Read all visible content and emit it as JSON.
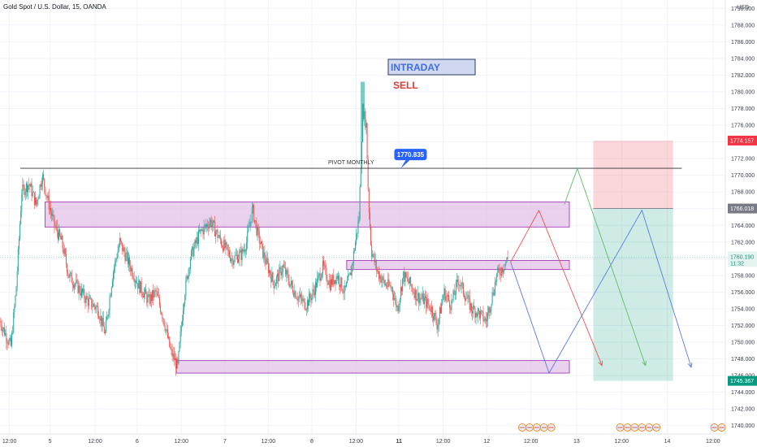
{
  "chart_data": {
    "type": "candlestick",
    "title": "Gold Spot / U.S. Dollar, 15, OANDA",
    "currency": "USD",
    "ylim": [
      1739,
      1791
    ],
    "y_ticks": [
      1740,
      1742,
      1744,
      1746,
      1748,
      1750,
      1752,
      1754,
      1756,
      1758,
      1760,
      1762,
      1764,
      1766,
      1768,
      1770,
      1772,
      1774,
      1776,
      1778,
      1780,
      1782,
      1784,
      1786,
      1788,
      1790
    ],
    "y_tick_labels": [
      "1740.000",
      "1742.000",
      "1744.000",
      "1746.000",
      "1748.000",
      "1750.000",
      "1752.000",
      "1754.000",
      "1756.000",
      "1758.000",
      "1760.000",
      "1762.000",
      "1764.000",
      "1766.000",
      "1768.000",
      "1770.000",
      "1772.000",
      "1774.000",
      "1776.000",
      "1778.000",
      "1780.000",
      "1782.000",
      "1784.000",
      "1786.000",
      "1788.000",
      "1790.000"
    ],
    "x_range": [
      0,
      1
    ],
    "x_ticks": [
      {
        "label": "12:00",
        "x": 0.013,
        "bold": false
      },
      {
        "label": "5",
        "x": 0.069,
        "bold": false
      },
      {
        "label": "12:00",
        "x": 0.131,
        "bold": false
      },
      {
        "label": "6",
        "x": 0.189,
        "bold": false
      },
      {
        "label": "12:00",
        "x": 0.25,
        "bold": false
      },
      {
        "label": "7",
        "x": 0.31,
        "bold": false
      },
      {
        "label": "12:00",
        "x": 0.37,
        "bold": false
      },
      {
        "label": "8",
        "x": 0.43,
        "bold": false
      },
      {
        "label": "12:00",
        "x": 0.491,
        "bold": false
      },
      {
        "label": "11",
        "x": 0.55,
        "bold": true
      },
      {
        "label": "12:00",
        "x": 0.611,
        "bold": false
      },
      {
        "label": "12",
        "x": 0.671,
        "bold": false
      },
      {
        "label": "12:00",
        "x": 0.732,
        "bold": false
      },
      {
        "label": "13",
        "x": 0.795,
        "bold": false
      },
      {
        "label": "12:00",
        "x": 0.857,
        "bold": false
      },
      {
        "label": "14",
        "x": 0.92,
        "bold": false
      },
      {
        "label": "12:00",
        "x": 0.983,
        "bold": false
      }
    ],
    "price_waypoints": [
      [
        0.0,
        1752.5
      ],
      [
        0.015,
        1749.5
      ],
      [
        0.022,
        1756.0
      ],
      [
        0.03,
        1768.0
      ],
      [
        0.04,
        1769.0
      ],
      [
        0.05,
        1766.5
      ],
      [
        0.058,
        1770.0
      ],
      [
        0.066,
        1767.0
      ],
      [
        0.075,
        1764.0
      ],
      [
        0.085,
        1762.0
      ],
      [
        0.095,
        1758.0
      ],
      [
        0.108,
        1756.5
      ],
      [
        0.12,
        1755.0
      ],
      [
        0.135,
        1754.0
      ],
      [
        0.145,
        1751.0
      ],
      [
        0.155,
        1758.0
      ],
      [
        0.165,
        1762.0
      ],
      [
        0.175,
        1760.0
      ],
      [
        0.19,
        1757.0
      ],
      [
        0.205,
        1755.0
      ],
      [
        0.215,
        1756.0
      ],
      [
        0.225,
        1753.0
      ],
      [
        0.235,
        1749.0
      ],
      [
        0.245,
        1747.0
      ],
      [
        0.253,
        1755.0
      ],
      [
        0.262,
        1760.0
      ],
      [
        0.275,
        1763.0
      ],
      [
        0.29,
        1764.5
      ],
      [
        0.305,
        1762.0
      ],
      [
        0.32,
        1760.0
      ],
      [
        0.333,
        1760.5
      ],
      [
        0.34,
        1762.0
      ],
      [
        0.348,
        1766.0
      ],
      [
        0.355,
        1763.0
      ],
      [
        0.365,
        1760.0
      ],
      [
        0.378,
        1757.0
      ],
      [
        0.39,
        1759.0
      ],
      [
        0.4,
        1757.0
      ],
      [
        0.41,
        1755.5
      ],
      [
        0.422,
        1754.5
      ],
      [
        0.432,
        1756.0
      ],
      [
        0.445,
        1759.0
      ],
      [
        0.455,
        1757.0
      ],
      [
        0.465,
        1758.0
      ],
      [
        0.475,
        1756.0
      ],
      [
        0.483,
        1758.0
      ],
      [
        0.49,
        1762.0
      ],
      [
        0.495,
        1765.0
      ],
      [
        0.5,
        1778.0
      ],
      [
        0.505,
        1776.0
      ],
      [
        0.508,
        1767.0
      ],
      [
        0.512,
        1761.0
      ],
      [
        0.52,
        1758.5
      ],
      [
        0.53,
        1757.0
      ],
      [
        0.54,
        1756.5
      ],
      [
        0.548,
        1754.0
      ],
      [
        0.556,
        1758.0
      ],
      [
        0.565,
        1757.0
      ],
      [
        0.575,
        1755.5
      ],
      [
        0.585,
        1755.0
      ],
      [
        0.595,
        1754.0
      ],
      [
        0.603,
        1752.0
      ],
      [
        0.612,
        1756.0
      ],
      [
        0.622,
        1754.5
      ],
      [
        0.632,
        1757.5
      ],
      [
        0.642,
        1755.5
      ],
      [
        0.65,
        1754.0
      ],
      [
        0.66,
        1753.5
      ],
      [
        0.67,
        1752.5
      ],
      [
        0.677,
        1755.0
      ],
      [
        0.685,
        1758.0
      ],
      [
        0.693,
        1759.0
      ],
      [
        0.7,
        1760.0
      ]
    ],
    "horizontal_line": {
      "label": "PIVOT MONTHLY",
      "value": 1770.835
    },
    "callout": {
      "label": "1770.835",
      "x": 0.566,
      "value": 1770.835
    },
    "zones": [
      {
        "name": "upper-zone",
        "x0": 0.062,
        "x1": 0.785,
        "y0": 1763.8,
        "y1": 1766.8
      },
      {
        "name": "middle-zone",
        "x0": 0.478,
        "x1": 0.785,
        "y0": 1758.7,
        "y1": 1759.8
      },
      {
        "name": "lower-zone",
        "x0": 0.243,
        "x1": 0.785,
        "y0": 1746.3,
        "y1": 1747.8
      }
    ],
    "projections": [
      {
        "name": "red-projection",
        "color": "#ef5350",
        "points": [
          [
            0.704,
            1759.6
          ],
          [
            0.743,
            1765.8
          ],
          [
            0.83,
            1747.2
          ]
        ]
      },
      {
        "name": "blue-projection",
        "color": "#5b7be0",
        "points": [
          [
            0.704,
            1759.6
          ],
          [
            0.757,
            1746.3
          ],
          [
            0.885,
            1765.8
          ],
          [
            0.953,
            1747.0
          ]
        ]
      },
      {
        "name": "green-projection",
        "color": "#66bb6a",
        "points": [
          [
            0.778,
            1766.5
          ],
          [
            0.796,
            1770.8
          ],
          [
            0.89,
            1747.2
          ]
        ]
      }
    ],
    "risk_reward": {
      "x0": 0.818,
      "x1": 0.928,
      "entry": 1766.018,
      "stop": 1774.157,
      "target": 1745.367
    },
    "current_price": {
      "value": 1760.19,
      "timer": "11:32"
    },
    "price_tags": [
      {
        "name": "stop-tag",
        "label": "1774.157",
        "value": 1774.157,
        "bg": "#f23645",
        "fg": "#ffffff"
      },
      {
        "name": "entry-tag",
        "label": "1766.018",
        "value": 1766.018,
        "bg": "#787b86",
        "fg": "#ffffff"
      },
      {
        "name": "target-tag",
        "label": "1745.367",
        "value": 1745.367,
        "bg": "#089981",
        "fg": "#ffffff"
      }
    ],
    "annotations": {
      "intraday": "INTRADAY",
      "sell": "SELL"
    },
    "event_flags": [
      0.72,
      0.73,
      0.74,
      0.75,
      0.76,
      0.855,
      0.865,
      0.875,
      0.885,
      0.895,
      0.905,
      0.985,
      0.995
    ],
    "colors": {
      "up": "#26a69a",
      "down": "#ef5350",
      "zone_fill": "#e1bee7",
      "zone_stroke": "#9c27b0"
    }
  }
}
